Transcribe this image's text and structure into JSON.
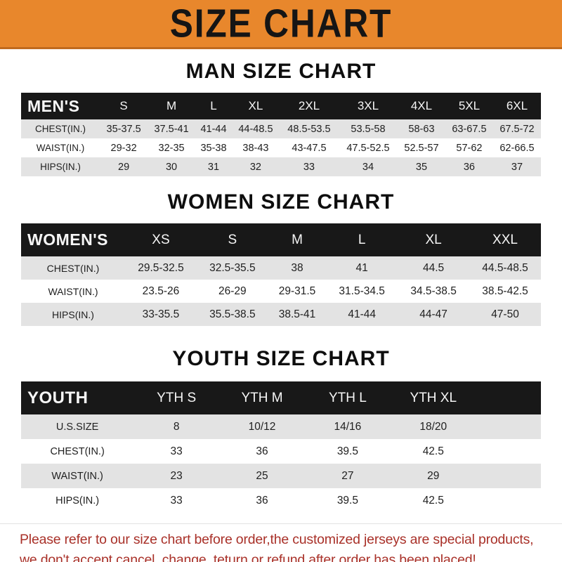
{
  "banner": {
    "title": "SIZE CHART"
  },
  "colors": {
    "banner_bg": "#E8872C",
    "table_header_bg": "#181818",
    "row_alt_bg": "#E3E3E3",
    "disclaimer_text": "#A93129"
  },
  "sections": [
    {
      "heading": "MAN SIZE CHART",
      "table": {
        "header": [
          "MEN'S",
          "S",
          "M",
          "L",
          "XL",
          "2XL",
          "3XL",
          "4XL",
          "5XL",
          "6XL"
        ],
        "rows": [
          {
            "label": "CHEST(IN.)",
            "values": [
              "35-37.5",
              "37.5-41",
              "41-44",
              "44-48.5",
              "48.5-53.5",
              "53.5-58",
              "58-63",
              "63-67.5",
              "67.5-72"
            ]
          },
          {
            "label": "WAIST(IN.)",
            "values": [
              "29-32",
              "32-35",
              "35-38",
              "38-43",
              "43-47.5",
              "47.5-52.5",
              "52.5-57",
              "57-62",
              "62-66.5"
            ]
          },
          {
            "label": "HIPS(IN.)",
            "values": [
              "29",
              "30",
              "31",
              "32",
              "33",
              "34",
              "35",
              "36",
              "37"
            ]
          }
        ]
      }
    },
    {
      "heading": "WOMEN SIZE CHART",
      "table": {
        "header": [
          "WOMEN'S",
          "XS",
          "S",
          "M",
          "L",
          "XL",
          "XXL"
        ],
        "rows": [
          {
            "label": "CHEST(IN.)",
            "values": [
              "29.5-32.5",
              "32.5-35.5",
              "38",
              "41",
              "44.5",
              "44.5-48.5"
            ]
          },
          {
            "label": "WAIST(IN.)",
            "values": [
              "23.5-26",
              "26-29",
              "29-31.5",
              "31.5-34.5",
              "34.5-38.5",
              "38.5-42.5"
            ]
          },
          {
            "label": "HIPS(IN.)",
            "values": [
              "33-35.5",
              "35.5-38.5",
              "38.5-41",
              "41-44",
              "44-47",
              "47-50"
            ]
          }
        ]
      }
    },
    {
      "heading": "YOUTH SIZE CHART",
      "table": {
        "header": [
          "YOUTH",
          "YTH S",
          "YTH M",
          "YTH L",
          "YTH XL",
          ""
        ],
        "rows": [
          {
            "label": "U.S.SIZE",
            "values": [
              "8",
              "10/12",
              "14/16",
              "18/20",
              ""
            ]
          },
          {
            "label": "CHEST(IN.)",
            "values": [
              "33",
              "36",
              "39.5",
              "42.5",
              ""
            ]
          },
          {
            "label": "WAIST(IN.)",
            "values": [
              "23",
              "25",
              "27",
              "29",
              ""
            ]
          },
          {
            "label": "HIPS(IN.)",
            "values": [
              "33",
              "36",
              "39.5",
              "42.5",
              ""
            ]
          }
        ]
      }
    }
  ],
  "footer": {
    "line1": "Please refer to our size chart before order,the customized jerseys are special products,",
    "line2": "we don't accept cancel, change, teturn or refund after order has been placed!"
  }
}
